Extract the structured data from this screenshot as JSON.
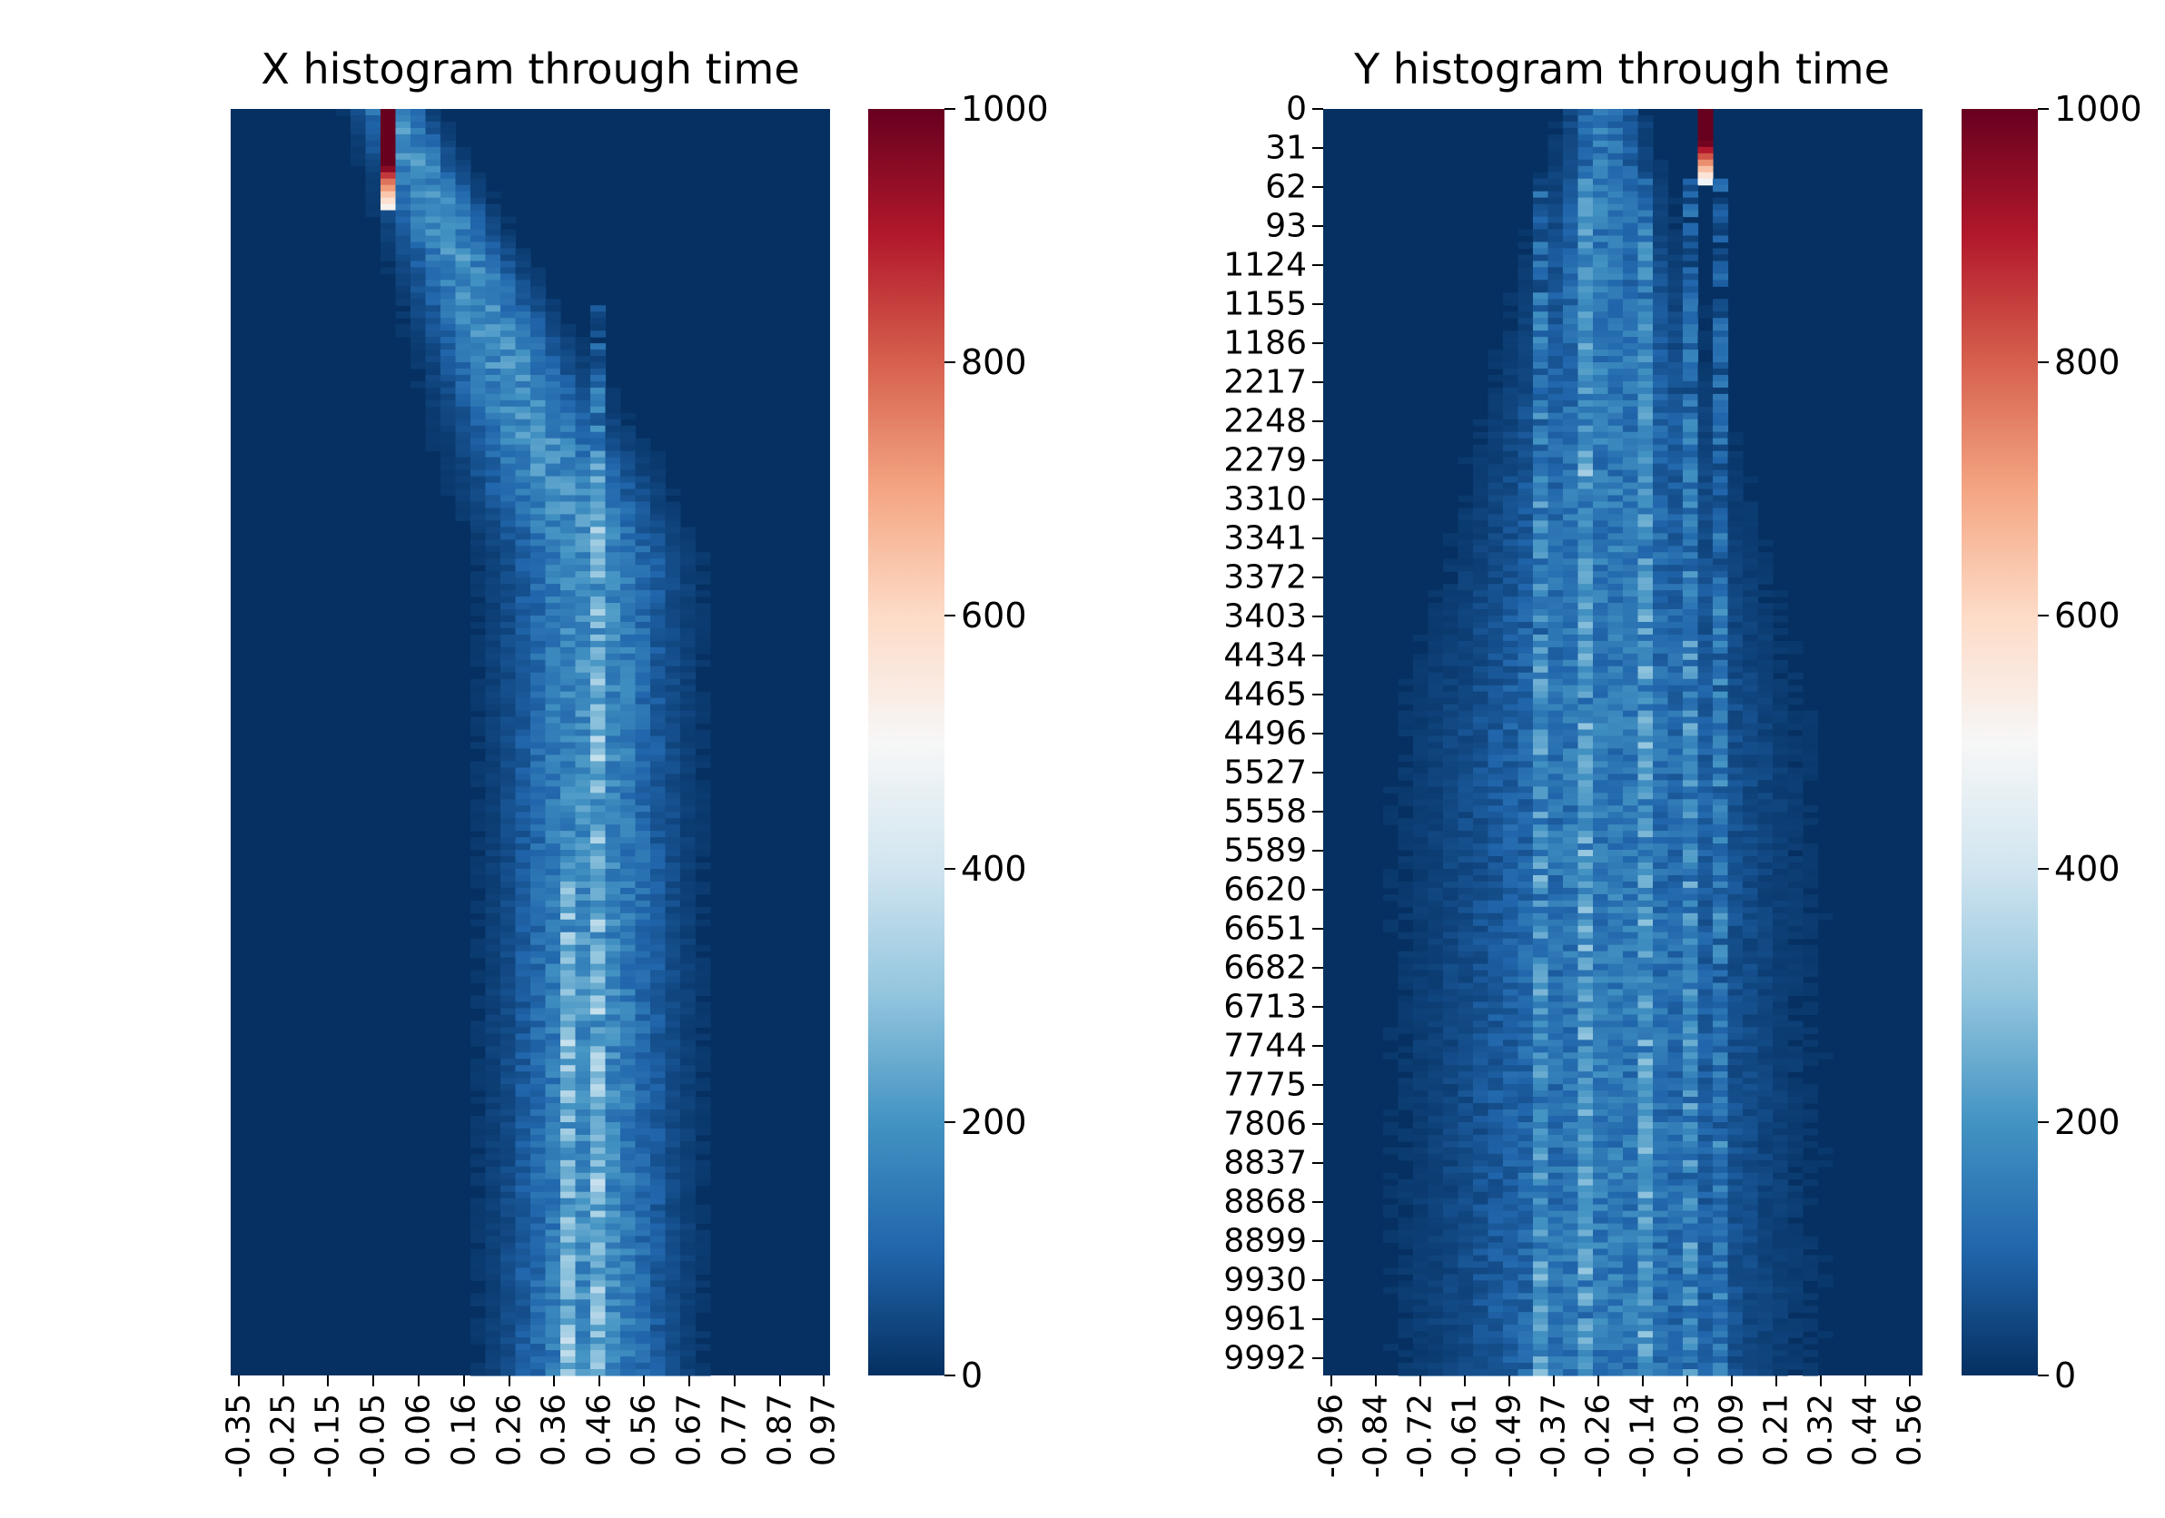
{
  "colors": {
    "colormap": "RdBu_r",
    "low": "#053061",
    "mid": "#f7f7f7",
    "high": "#67001f"
  },
  "chart_data": [
    {
      "type": "heatmap",
      "title": "X histogram through time",
      "x_tick_labels": [
        "-0.35",
        "-0.25",
        "-0.15",
        "-0.05",
        "0.06",
        "0.16",
        "0.26",
        "0.36",
        "0.46",
        "0.56",
        "0.67",
        "0.77",
        "0.87",
        "0.97"
      ],
      "y_tick_labels": [],
      "n_rows": 1000,
      "n_cols": 40,
      "colorbar": {
        "range": [
          0,
          1000
        ],
        "ticks": [
          "0",
          "200",
          "400",
          "600",
          "800",
          "1000"
        ]
      },
      "peak": {
        "x_bin": "-0.05",
        "value": 1000
      }
    },
    {
      "type": "heatmap",
      "title": "Y histogram through time",
      "x_tick_labels": [
        "-0.96",
        "-0.84",
        "-0.72",
        "-0.61",
        "-0.49",
        "-0.37",
        "-0.26",
        "-0.14",
        "-0.03",
        "0.09",
        "0.21",
        "0.32",
        "0.44",
        "0.56"
      ],
      "y_tick_labels": [
        "0",
        "31",
        "62",
        "93",
        "1124",
        "1155",
        "1186",
        "2217",
        "2248",
        "2279",
        "3310",
        "3341",
        "3372",
        "3403",
        "4434",
        "4465",
        "4496",
        "5527",
        "5558",
        "5589",
        "6620",
        "6651",
        "6682",
        "6713",
        "7744",
        "7775",
        "7806",
        "8837",
        "8868",
        "8899",
        "9930",
        "9961",
        "9992"
      ],
      "n_rows": 1000,
      "n_cols": 40,
      "colorbar": {
        "range": [
          0,
          1000
        ],
        "ticks": [
          "0",
          "200",
          "400",
          "600",
          "800",
          "1000"
        ]
      },
      "peak": {
        "x_bin": "0.03",
        "value": 1000
      }
    }
  ]
}
